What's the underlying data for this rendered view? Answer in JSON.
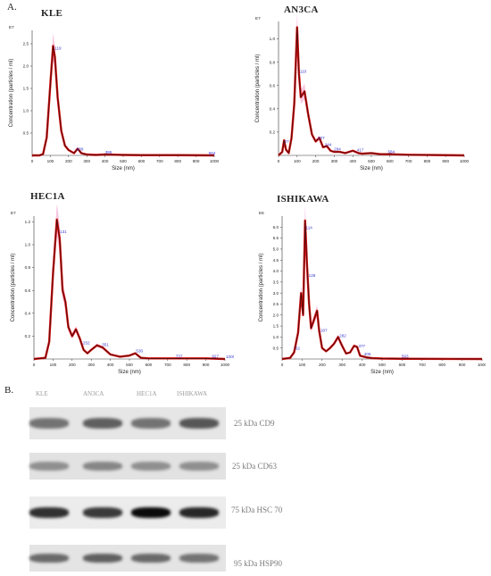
{
  "panel_a_label": "A.",
  "panel_b_label": "B.",
  "chart_data": [
    {
      "type": "line",
      "title": "KLE",
      "xlabel": "Size (nm)",
      "ylabel": "Concentration (particles / ml)",
      "exponent": "E7",
      "xlim": [
        0,
        1000
      ],
      "ylim": [
        0,
        2.8
      ],
      "x_ticks": [
        0,
        100,
        200,
        300,
        400,
        500,
        600,
        700,
        800,
        900,
        1000
      ],
      "y_ticks": [
        0.5,
        1.0,
        1.5,
        2.0,
        2.5
      ],
      "series": [
        {
          "x": [
            0,
            40,
            60,
            80,
            100,
            115,
            125,
            140,
            160,
            180,
            200,
            230,
            250,
            270,
            300,
            350,
            400,
            500,
            600,
            800,
            1000
          ],
          "y": [
            0,
            0,
            0.03,
            0.4,
            1.6,
            2.45,
            2.2,
            1.3,
            0.55,
            0.22,
            0.12,
            0.05,
            0.15,
            0.05,
            0.02,
            0.01,
            0.02,
            0.01,
            0.005,
            0.005,
            0
          ]
        }
      ],
      "peak_labels": [
        {
          "x": 119,
          "text": "119"
        },
        {
          "x": 239,
          "text": "239"
        },
        {
          "x": 395,
          "text": "395"
        },
        {
          "x": 964,
          "text": "964"
        }
      ]
    },
    {
      "type": "line",
      "title": "AN3CA",
      "xlabel": "Size (nm)",
      "ylabel": "Concentration (particles / ml)",
      "exponent": "E7",
      "xlim": [
        0,
        1000
      ],
      "ylim": [
        0,
        1.15
      ],
      "x_ticks": [
        0,
        100,
        200,
        300,
        400,
        500,
        600,
        700,
        800,
        900,
        1000
      ],
      "y_ticks": [
        0.2,
        0.4,
        0.6,
        0.8,
        1.0
      ],
      "series": [
        {
          "x": [
            0,
            20,
            30,
            40,
            55,
            70,
            85,
            100,
            110,
            120,
            140,
            160,
            180,
            200,
            220,
            240,
            260,
            280,
            300,
            330,
            360,
            400,
            430,
            450,
            500,
            550,
            600,
            700,
            1000
          ],
          "y": [
            0,
            0.03,
            0.13,
            0.05,
            0.02,
            0.15,
            0.45,
            1.1,
            0.7,
            0.5,
            0.55,
            0.35,
            0.18,
            0.12,
            0.15,
            0.07,
            0.08,
            0.04,
            0.03,
            0.03,
            0.02,
            0.04,
            0.02,
            0.015,
            0.02,
            0.01,
            0.01,
            0.005,
            0
          ]
        }
      ],
      "peak_labels": [
        {
          "x": 27,
          "text": "27"
        },
        {
          "x": 110,
          "text": "110"
        },
        {
          "x": 207,
          "text": "207"
        },
        {
          "x": 244,
          "text": "244"
        },
        {
          "x": 294,
          "text": "294"
        },
        {
          "x": 417,
          "text": "417"
        },
        {
          "x": 584,
          "text": "584"
        }
      ]
    },
    {
      "type": "line",
      "title": "HEC1A",
      "xlabel": "Size (nm)",
      "ylabel": "Concentration (particles / ml)",
      "exponent": "E7",
      "xlim": [
        0,
        1000
      ],
      "ylim": [
        0,
        1.25
      ],
      "x_ticks": [
        0,
        100,
        200,
        300,
        400,
        500,
        600,
        700,
        800,
        900,
        1000
      ],
      "y_ticks": [
        0.2,
        0.4,
        0.6,
        0.8,
        1.0,
        1.2
      ],
      "series": [
        {
          "x": [
            0,
            60,
            80,
            100,
            120,
            135,
            150,
            165,
            180,
            200,
            220,
            240,
            260,
            280,
            300,
            330,
            360,
            400,
            450,
            500,
            530,
            560,
            600,
            700,
            800,
            900,
            1000
          ],
          "y": [
            0,
            0.01,
            0.15,
            0.75,
            1.22,
            1.05,
            0.6,
            0.5,
            0.28,
            0.2,
            0.26,
            0.18,
            0.08,
            0.05,
            0.08,
            0.12,
            0.1,
            0.04,
            0.02,
            0.03,
            0.05,
            0.01,
            0.005,
            0.005,
            0.005,
            0.005,
            0
          ]
        }
      ],
      "peak_labels": [
        {
          "x": 131,
          "text": "131"
        },
        {
          "x": 252,
          "text": "252"
        },
        {
          "x": 351,
          "text": "351"
        },
        {
          "x": 530,
          "text": "530"
        },
        {
          "x": 737,
          "text": "737"
        },
        {
          "x": 927,
          "text": "927"
        },
        {
          "x": 1000,
          "text": "1000"
        }
      ]
    },
    {
      "type": "line",
      "title": "ISHIKAWA",
      "xlabel": "Size (nm)",
      "ylabel": "Concentration (particles / ml)",
      "exponent": "E6",
      "xlim": [
        0,
        1000
      ],
      "ylim": [
        0,
        6.5
      ],
      "x_ticks": [
        0,
        100,
        200,
        300,
        400,
        500,
        600,
        700,
        800,
        900,
        1000
      ],
      "y_ticks": [
        0.5,
        1.0,
        1.5,
        2.0,
        2.5,
        3.0,
        3.5,
        4.0,
        4.5,
        5.0,
        5.5,
        6.0
      ],
      "series": [
        {
          "x": [
            0,
            40,
            60,
            80,
            95,
            105,
            115,
            125,
            135,
            145,
            160,
            175,
            185,
            200,
            220,
            240,
            260,
            280,
            300,
            320,
            340,
            360,
            375,
            390,
            420,
            450,
            500,
            600,
            1000
          ],
          "y": [
            0,
            0.05,
            0.3,
            1.2,
            3.0,
            2.0,
            6.3,
            4.2,
            2.5,
            1.4,
            1.8,
            2.2,
            1.3,
            0.5,
            0.35,
            0.5,
            0.7,
            1.0,
            0.6,
            0.25,
            0.3,
            0.6,
            0.55,
            0.15,
            0.08,
            0.04,
            0.02,
            0.01,
            0
          ]
        }
      ],
      "peak_labels": [
        {
          "x": 62,
          "text": "62"
        },
        {
          "x": 128,
          "text": "128"
        },
        {
          "x": 114,
          "text": "114"
        },
        {
          "x": 187,
          "text": "187"
        },
        {
          "x": 282,
          "text": "282"
        },
        {
          "x": 377,
          "text": "377"
        },
        {
          "x": 405,
          "text": "405"
        },
        {
          "x": 593,
          "text": "593"
        }
      ]
    }
  ],
  "blot": {
    "lanes": [
      "KLE",
      "AN3CA",
      "HEC1A",
      "ISHIKAWA"
    ],
    "rows": [
      {
        "label": "25 kDa CD9",
        "intensity": [
          0.45,
          0.55,
          0.45,
          0.6
        ]
      },
      {
        "label": "25 kDa CD63",
        "intensity": [
          0.3,
          0.35,
          0.3,
          0.3
        ]
      },
      {
        "label": "75 kDa HSC 70",
        "intensity": [
          0.8,
          0.75,
          1.0,
          0.85
        ]
      },
      {
        "label": "95 kDa HSP90",
        "intensity": [
          0.5,
          0.55,
          0.5,
          0.45
        ]
      }
    ]
  }
}
